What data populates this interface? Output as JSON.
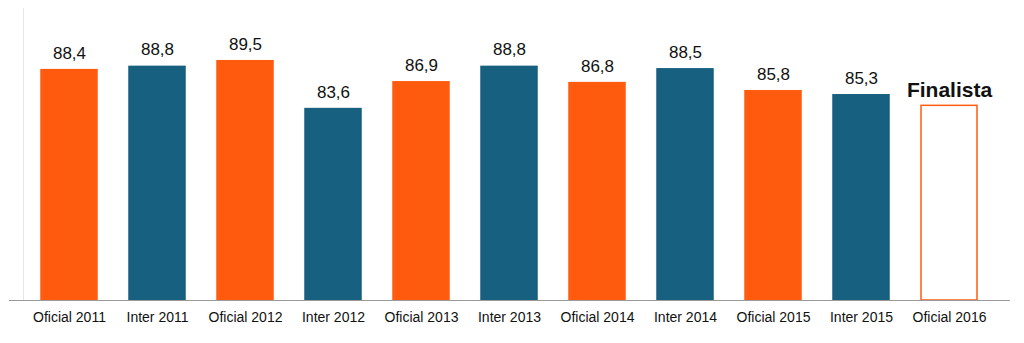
{
  "chart_data": {
    "type": "bar",
    "categories": [
      "Oficial 2011",
      "Inter 2011",
      "Oficial 2012",
      "Inter 2012",
      "Oficial 2013",
      "Inter 2013",
      "Oficial 2014",
      "Inter 2014",
      "Oficial 2015",
      "Inter 2015",
      "Oficial 2016"
    ],
    "values": [
      88.4,
      88.8,
      89.5,
      83.6,
      86.9,
      88.8,
      86.8,
      88.5,
      85.8,
      85.3,
      84
    ],
    "value_labels": [
      "88,4",
      "88,8",
      "89,5",
      "83,6",
      "86,9",
      "88,8",
      "86,8",
      "88,5",
      "85,8",
      "85,3",
      null
    ],
    "colors": [
      "#FF5B0F",
      "#17607F",
      "#FF5B0F",
      "#17607F",
      "#FF5B0F",
      "#17607F",
      "#FF5B0F",
      "#17607F",
      "#FF5B0F",
      "#17607F",
      "#FF5B0F"
    ],
    "annotations": [
      {
        "text": "Finalista",
        "category": "Oficial 2016"
      }
    ],
    "ylim": [
      60,
      96
    ],
    "yticks": [],
    "grid": false,
    "data_labels": true,
    "tick_labels": "x"
  }
}
